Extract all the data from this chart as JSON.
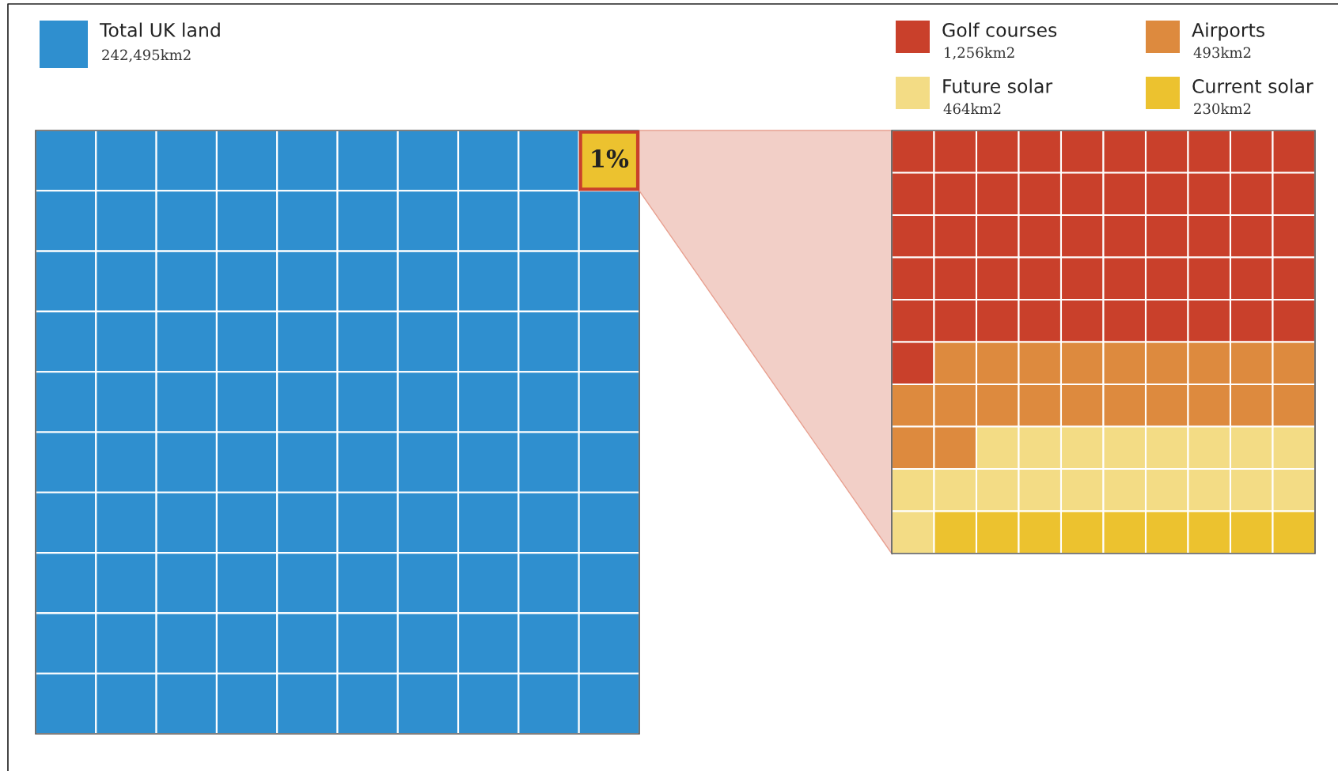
{
  "chart_data": {
    "type": "other",
    "categories": [
      "Total UK land",
      "Golf courses",
      "Airports",
      "Future solar",
      "Current solar"
    ],
    "values": [
      242495,
      1256,
      493,
      464,
      230
    ],
    "value_labels": [
      "242,495km2",
      "1,256km2",
      "493km2",
      "464km2",
      "230km2"
    ],
    "colors": [
      "#2f8fcf",
      "#c9402b",
      "#dd8a3e",
      "#f3dc85",
      "#ecc22f"
    ],
    "annotations": [
      "1%"
    ]
  }
}
